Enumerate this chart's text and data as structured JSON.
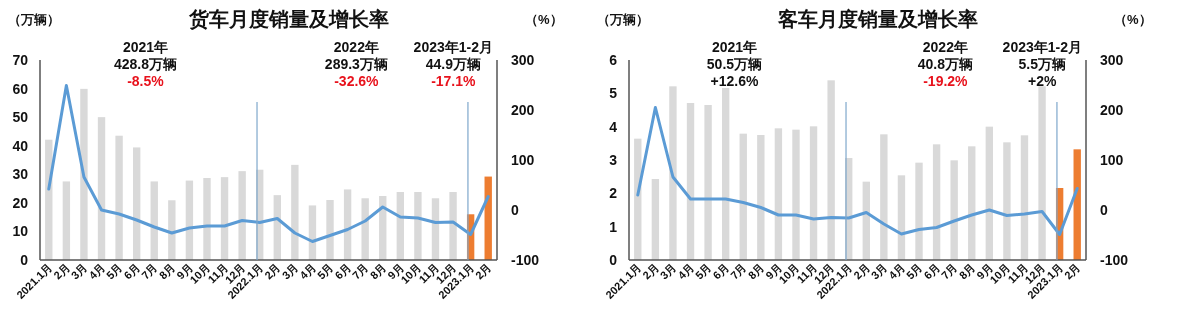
{
  "chart_data": [
    {
      "type": "bar",
      "title": "货车月度销量及增长率",
      "ylabel": "（万辆）",
      "y2label": "（%）",
      "categories": [
        "2021.1月",
        "2月",
        "3月",
        "4月",
        "5月",
        "6月",
        "7月",
        "8月",
        "9月",
        "10月",
        "11月",
        "12月",
        "2022.1月",
        "2月",
        "3月",
        "4月",
        "5月",
        "6月",
        "7月",
        "8月",
        "9月",
        "10月",
        "11月",
        "12月",
        "2023.1月",
        "2月"
      ],
      "series": [
        {
          "colors": [
            "#d9d9d9",
            "#d9d9d9",
            "#d9d9d9",
            "#d9d9d9",
            "#d9d9d9",
            "#d9d9d9",
            "#d9d9d9",
            "#d9d9d9",
            "#d9d9d9",
            "#d9d9d9",
            "#d9d9d9",
            "#d9d9d9",
            "#d9d9d9",
            "#d9d9d9",
            "#d9d9d9",
            "#d9d9d9",
            "#d9d9d9",
            "#d9d9d9",
            "#d9d9d9",
            "#d9d9d9",
            "#d9d9d9",
            "#d9d9d9",
            "#d9d9d9",
            "#d9d9d9",
            "#ed7d31",
            "#ed7d31"
          ],
          "values": [
            42.1,
            27.5,
            59.9,
            50,
            43.5,
            39.4,
            27.5,
            20.9,
            27.8,
            28.7,
            29,
            31.1,
            31.6,
            22.7,
            33.3,
            19.1,
            21,
            24.7,
            21.6,
            22.4,
            23.8,
            23.8,
            21.6,
            23.8,
            16,
            29.2
          ]
        },
        {
          "type": "line",
          "axis": "y2",
          "color": "#5b9bd5",
          "values": [
            42,
            249,
            66,
            0,
            -8,
            -20,
            -34,
            -46,
            -36,
            -32,
            -32,
            -21,
            -25,
            -17,
            -46,
            -63,
            -51,
            -39,
            -22,
            6,
            -14,
            -16,
            -25,
            -24,
            -49,
            27
          ]
        }
      ],
      "ylim": [
        0,
        70
      ],
      "yticks": [
        0,
        10,
        20,
        30,
        40,
        50,
        60,
        70
      ],
      "y2lim": [
        -100,
        300
      ],
      "y2ticks": [
        -100,
        0,
        100,
        200,
        300
      ],
      "ref_lines": [
        {
          "axis": "x",
          "value": "2022.1月",
          "color": "#7fa7cc"
        },
        {
          "axis": "x",
          "value": "2023.1月",
          "color": "#7fa7cc"
        }
      ],
      "annotations": [
        "2021年",
        "428.8万辆",
        "-8.5%",
        "2022年",
        "289.3万辆",
        "-32.6%",
        "2023年1-2月",
        "44.9万辆",
        "-17.1%"
      ],
      "grid": false,
      "line_style": "solid",
      "marker": "none"
    },
    {
      "type": "bar",
      "title": "客车月度销量及增长率",
      "ylabel": "（万辆）",
      "y2label": "（%）",
      "categories": [
        "2021.1月",
        "2月",
        "3月",
        "4月",
        "5月",
        "6月",
        "7月",
        "8月",
        "9月",
        "10月",
        "11月",
        "12月",
        "2022.1月",
        "2月",
        "3月",
        "4月",
        "5月",
        "6月",
        "7月",
        "8月",
        "9月",
        "10月",
        "11月",
        "12月",
        "2023.1月",
        "2月"
      ],
      "series": [
        {
          "colors": [
            "#d9d9d9",
            "#d9d9d9",
            "#d9d9d9",
            "#d9d9d9",
            "#d9d9d9",
            "#d9d9d9",
            "#d9d9d9",
            "#d9d9d9",
            "#d9d9d9",
            "#d9d9d9",
            "#d9d9d9",
            "#d9d9d9",
            "#d9d9d9",
            "#d9d9d9",
            "#d9d9d9",
            "#d9d9d9",
            "#d9d9d9",
            "#d9d9d9",
            "#d9d9d9",
            "#d9d9d9",
            "#d9d9d9",
            "#d9d9d9",
            "#d9d9d9",
            "#d9d9d9",
            "#ed7d31",
            "#ed7d31"
          ],
          "values": [
            3.64,
            2.43,
            5.21,
            4.71,
            4.65,
            5.16,
            3.79,
            3.75,
            3.95,
            3.91,
            4.01,
            5.39,
            3.06,
            2.35,
            3.77,
            2.54,
            2.92,
            3.47,
            2.99,
            3.41,
            4.0,
            3.53,
            3.74,
            5.21,
            2.16,
            3.32
          ]
        },
        {
          "type": "line",
          "axis": "y2",
          "color": "#5b9bd5",
          "values": [
            30,
            205,
            66,
            22,
            22,
            22,
            15,
            5,
            -10,
            -10,
            -18,
            -15,
            -16,
            -5,
            -28,
            -48,
            -39,
            -35,
            -22,
            -10,
            0,
            -11,
            -8,
            -3,
            -49,
            43
          ]
        }
      ],
      "ylim": [
        0,
        6
      ],
      "yticks": [
        0,
        1,
        2,
        3,
        4,
        5,
        6
      ],
      "y2lim": [
        -100,
        300
      ],
      "y2ticks": [
        -100,
        0,
        100,
        200,
        300
      ],
      "ref_lines": [
        {
          "axis": "x",
          "value": "2022.1月",
          "color": "#7fa7cc"
        },
        {
          "axis": "x",
          "value": "2023.1月",
          "color": "#7fa7cc"
        }
      ],
      "annotations": [
        "2021年",
        "50.5万辆",
        "+12.6%",
        "2022年",
        "40.8万辆",
        "-19.2%",
        "2023年1-2月",
        "5.5万辆",
        "+2%"
      ],
      "grid": false,
      "line_style": "solid",
      "marker": "none"
    }
  ]
}
